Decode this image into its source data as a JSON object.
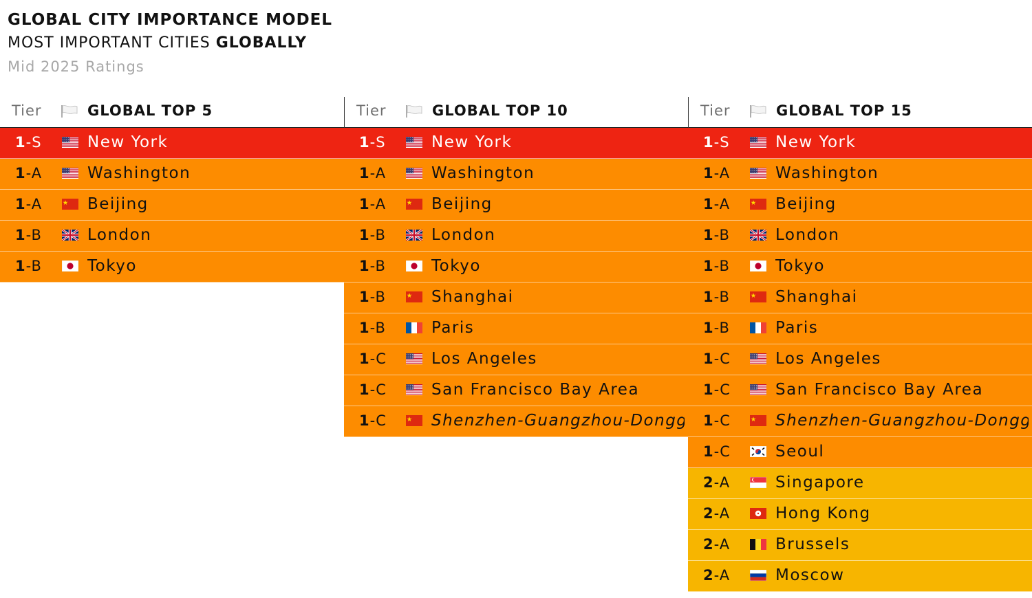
{
  "title": "GLOBAL CITY IMPORTANCE MODEL",
  "subtitle_prefix": "MOST IMPORTANT CITIES ",
  "subtitle_bold": "GLOBALLY",
  "date": "Mid 2025 Ratings",
  "colors": {
    "S": "#ee2412",
    "tier1": "#fd8c00",
    "tier2": "#f7b500"
  },
  "chart_data": {
    "type": "table",
    "title": "GLOBAL CITY IMPORTANCE MODEL",
    "columns": [
      {
        "tier_header": "Tier",
        "header_icon": "white-flag",
        "header": "GLOBAL TOP 5",
        "rows": [
          {
            "major": "1",
            "minor": "-S",
            "flag": "US",
            "city": "New York"
          },
          {
            "major": "1",
            "minor": "-A",
            "flag": "US",
            "city": "Washington"
          },
          {
            "major": "1",
            "minor": "-A",
            "flag": "CN",
            "city": "Beijing"
          },
          {
            "major": "1",
            "minor": "-B",
            "flag": "GB",
            "city": "London"
          },
          {
            "major": "1",
            "minor": "-B",
            "flag": "JP",
            "city": "Tokyo"
          }
        ]
      },
      {
        "tier_header": "Tier",
        "header_icon": "white-flag",
        "header": "GLOBAL TOP 10",
        "rows": [
          {
            "major": "1",
            "minor": "-S",
            "flag": "US",
            "city": "New York"
          },
          {
            "major": "1",
            "minor": "-A",
            "flag": "US",
            "city": "Washington"
          },
          {
            "major": "1",
            "minor": "-A",
            "flag": "CN",
            "city": "Beijing"
          },
          {
            "major": "1",
            "minor": "-B",
            "flag": "GB",
            "city": "London"
          },
          {
            "major": "1",
            "minor": "-B",
            "flag": "JP",
            "city": "Tokyo"
          },
          {
            "major": "1",
            "minor": "-B",
            "flag": "CN",
            "city": "Shanghai"
          },
          {
            "major": "1",
            "minor": "-B",
            "flag": "FR",
            "city": "Paris"
          },
          {
            "major": "1",
            "minor": "-C",
            "flag": "US",
            "city": "Los Angeles"
          },
          {
            "major": "1",
            "minor": "-C",
            "flag": "US",
            "city": "San Francisco Bay Area"
          },
          {
            "major": "1",
            "minor": "-C",
            "flag": "CN",
            "city": "Shenzhen-Guangzhou-Dongg",
            "italic": true
          }
        ]
      },
      {
        "tier_header": "Tier",
        "header_icon": "white-flag",
        "header": "GLOBAL TOP 15",
        "rows": [
          {
            "major": "1",
            "minor": "-S",
            "flag": "US",
            "city": "New York"
          },
          {
            "major": "1",
            "minor": "-A",
            "flag": "US",
            "city": "Washington"
          },
          {
            "major": "1",
            "minor": "-A",
            "flag": "CN",
            "city": "Beijing"
          },
          {
            "major": "1",
            "minor": "-B",
            "flag": "GB",
            "city": "London"
          },
          {
            "major": "1",
            "minor": "-B",
            "flag": "JP",
            "city": "Tokyo"
          },
          {
            "major": "1",
            "minor": "-B",
            "flag": "CN",
            "city": "Shanghai"
          },
          {
            "major": "1",
            "minor": "-B",
            "flag": "FR",
            "city": "Paris"
          },
          {
            "major": "1",
            "minor": "-C",
            "flag": "US",
            "city": "Los Angeles"
          },
          {
            "major": "1",
            "minor": "-C",
            "flag": "US",
            "city": "San Francisco Bay Area"
          },
          {
            "major": "1",
            "minor": "-C",
            "flag": "CN",
            "city": "Shenzhen-Guangzhou-Dongg",
            "italic": true
          },
          {
            "major": "1",
            "minor": "-C",
            "flag": "KR",
            "city": "Seoul"
          },
          {
            "major": "2",
            "minor": "-A",
            "flag": "SG",
            "city": "Singapore"
          },
          {
            "major": "2",
            "minor": "-A",
            "flag": "HK",
            "city": "Hong Kong"
          },
          {
            "major": "2",
            "minor": "-A",
            "flag": "BE",
            "city": "Brussels"
          },
          {
            "major": "2",
            "minor": "-A",
            "flag": "RU",
            "city": "Moscow"
          }
        ]
      }
    ]
  }
}
